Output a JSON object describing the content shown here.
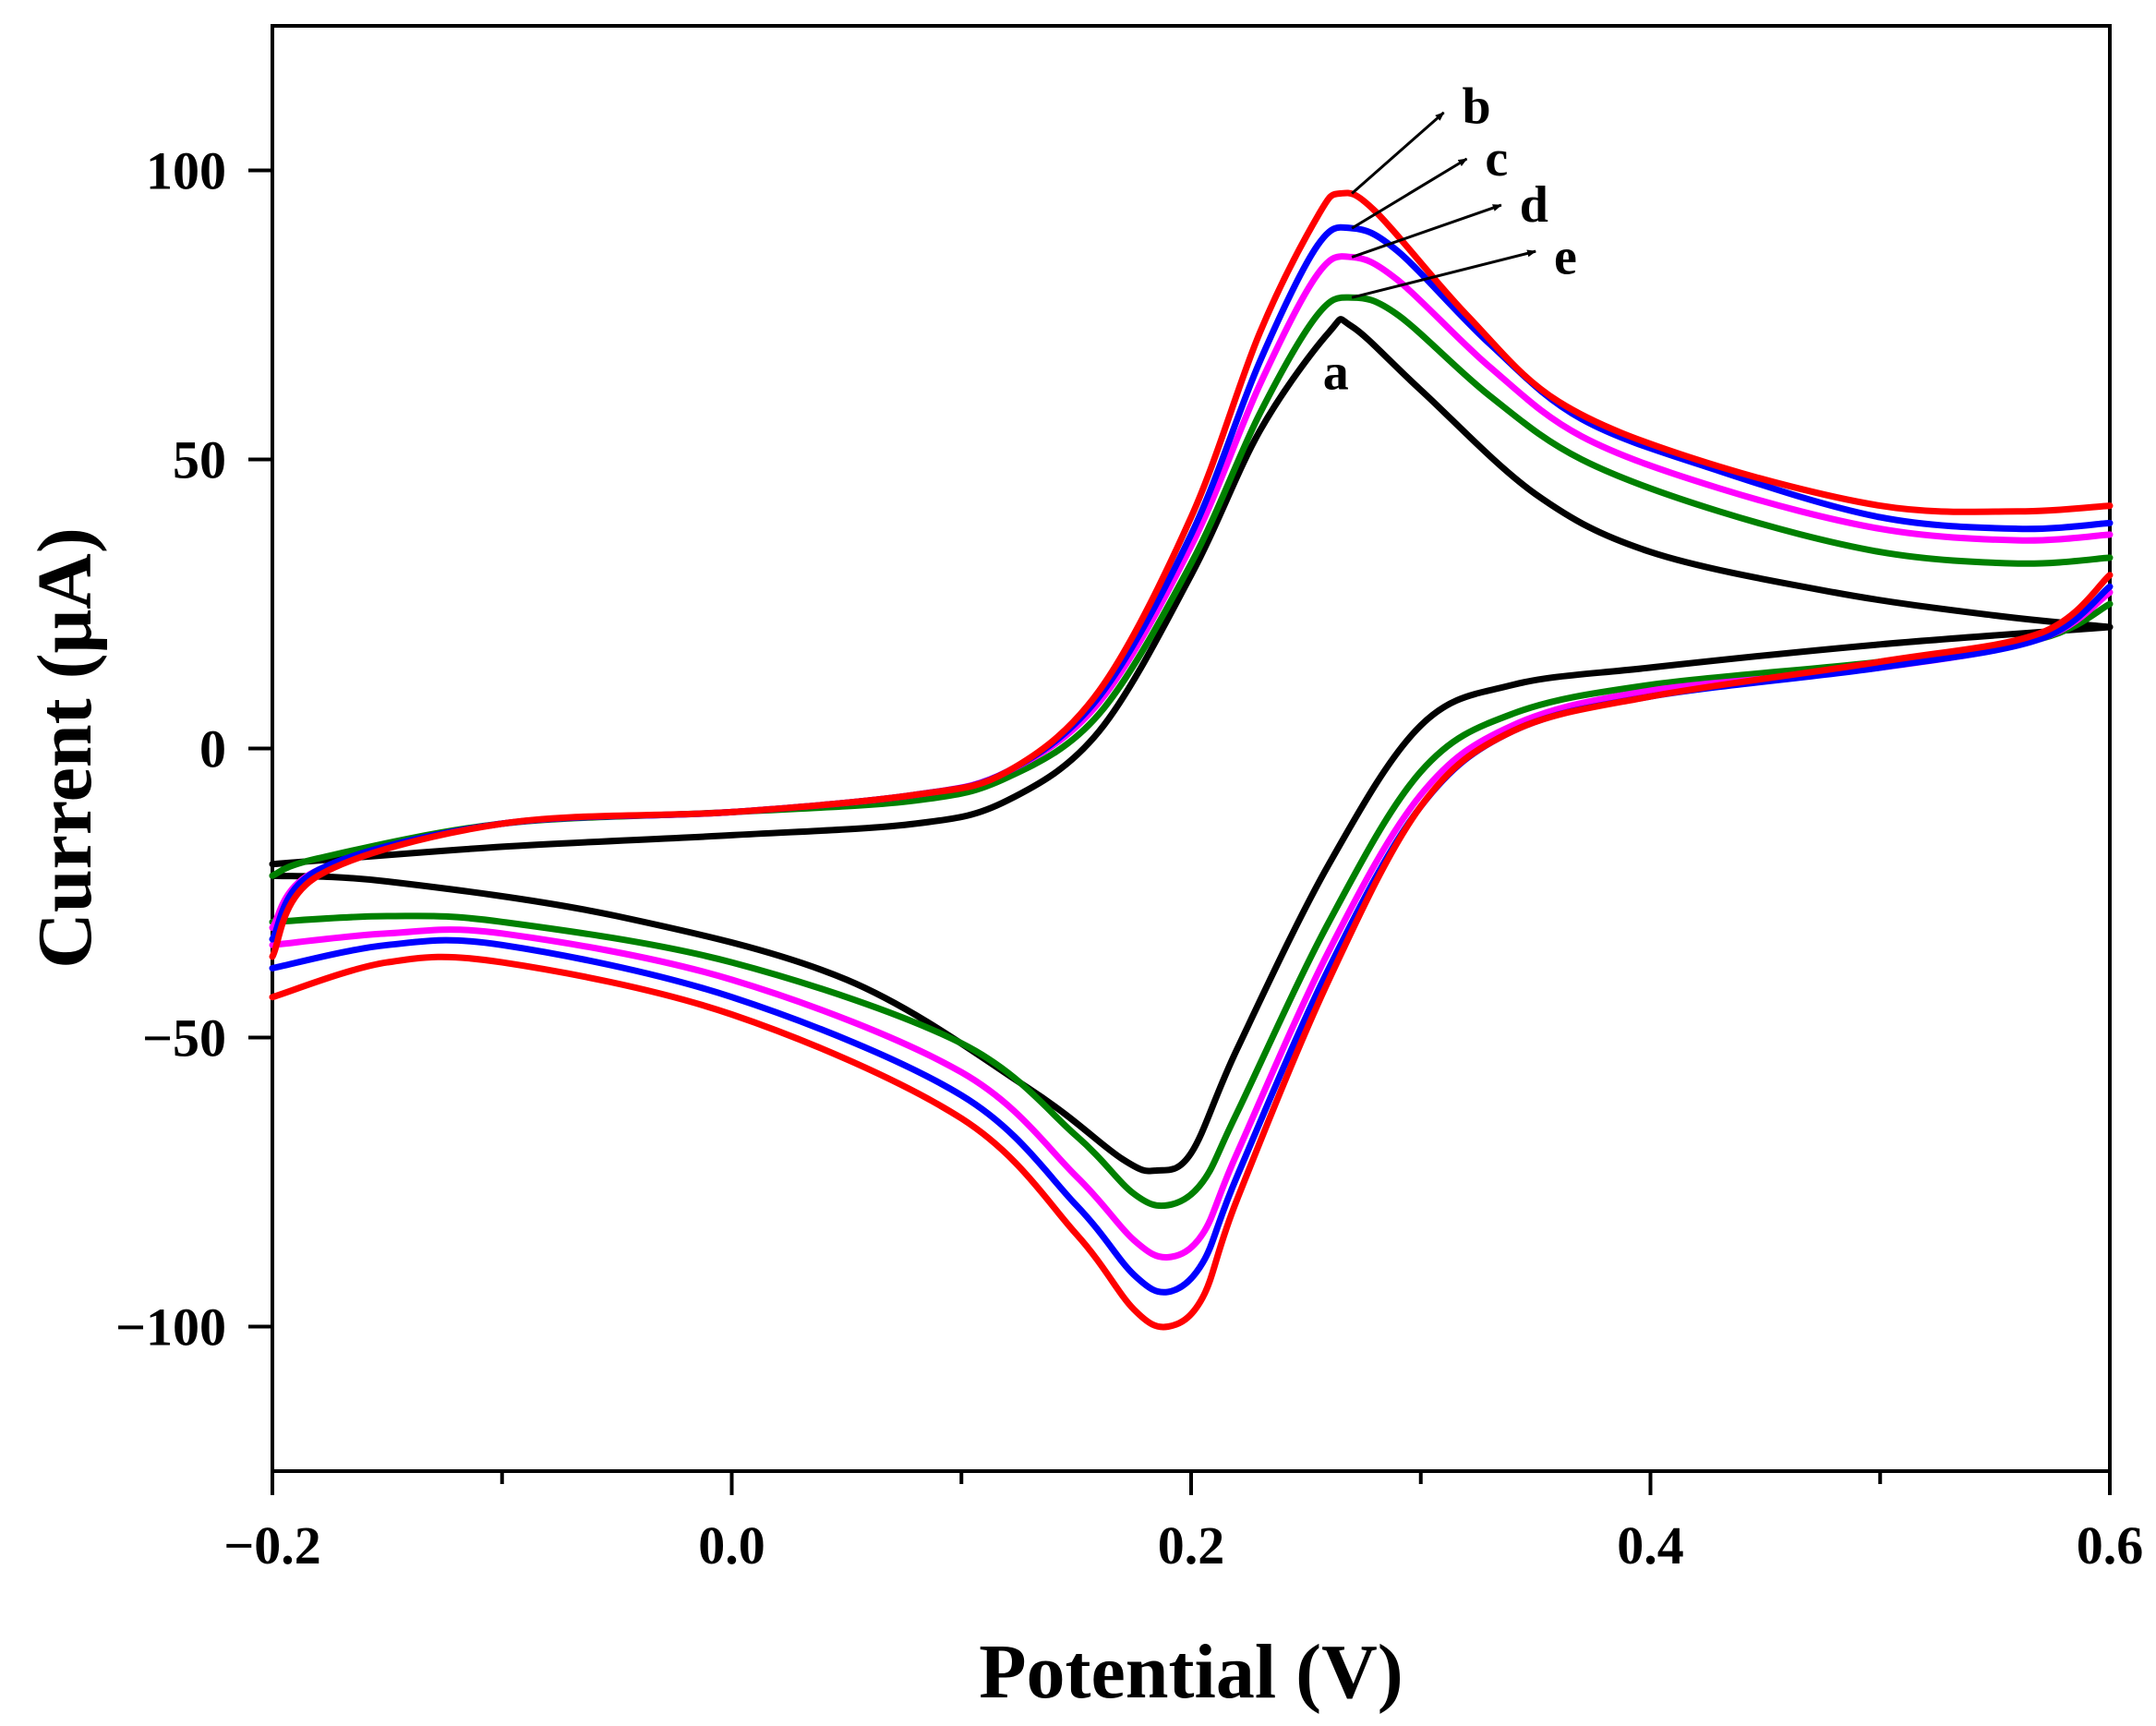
{
  "chart_data": {
    "type": "line",
    "title": "",
    "xlabel": "Potential (V)",
    "ylabel": "Current (μA)",
    "xlim": [
      -0.2,
      0.6
    ],
    "ylim": [
      -125,
      125
    ],
    "x_ticks": [
      -0.2,
      0.0,
      0.2,
      0.4,
      0.6
    ],
    "x_tick_labels": [
      "−0.2",
      "0.0",
      "0.2",
      "0.4",
      "0.6"
    ],
    "y_ticks": [
      -100,
      -50,
      0,
      50,
      100
    ],
    "y_tick_labels": [
      "−100",
      "−50",
      "0",
      "50",
      "100"
    ],
    "grid": false,
    "legend": "none",
    "series": [
      {
        "name": "a",
        "color": "#000000",
        "anodic": [
          [
            -0.2,
            -20
          ],
          [
            -0.1,
            -17
          ],
          [
            0.0,
            -15
          ],
          [
            0.08,
            -13
          ],
          [
            0.12,
            -9
          ],
          [
            0.16,
            3
          ],
          [
            0.2,
            30
          ],
          [
            0.23,
            55
          ],
          [
            0.26,
            72
          ],
          [
            0.27,
            73
          ],
          [
            0.3,
            62
          ],
          [
            0.35,
            44
          ],
          [
            0.4,
            34
          ],
          [
            0.48,
            27
          ],
          [
            0.55,
            23
          ],
          [
            0.6,
            21
          ]
        ],
        "cathodic": [
          [
            0.6,
            21
          ],
          [
            0.5,
            18
          ],
          [
            0.4,
            14
          ],
          [
            0.34,
            11
          ],
          [
            0.3,
            4
          ],
          [
            0.26,
            -20
          ],
          [
            0.22,
            -52
          ],
          [
            0.2,
            -70
          ],
          [
            0.185,
            -73
          ],
          [
            0.17,
            -71
          ],
          [
            0.13,
            -59
          ],
          [
            0.05,
            -40
          ],
          [
            -0.05,
            -29
          ],
          [
            -0.15,
            -23
          ],
          [
            -0.2,
            -22
          ]
        ]
      },
      {
        "name": "b",
        "color": "#ff0000",
        "anodic": [
          [
            -0.2,
            -36
          ],
          [
            -0.18,
            -22
          ],
          [
            -0.1,
            -13
          ],
          [
            0.0,
            -11
          ],
          [
            0.08,
            -8
          ],
          [
            0.12,
            -4
          ],
          [
            0.16,
            10
          ],
          [
            0.2,
            40
          ],
          [
            0.23,
            72
          ],
          [
            0.255,
            92
          ],
          [
            0.265,
            96
          ],
          [
            0.28,
            93
          ],
          [
            0.32,
            75
          ],
          [
            0.36,
            60
          ],
          [
            0.42,
            50
          ],
          [
            0.5,
            42
          ],
          [
            0.56,
            41
          ],
          [
            0.6,
            42
          ]
        ],
        "cathodic": [
          [
            0.6,
            30
          ],
          [
            0.57,
            20
          ],
          [
            0.5,
            15
          ],
          [
            0.4,
            9
          ],
          [
            0.34,
            3
          ],
          [
            0.3,
            -10
          ],
          [
            0.26,
            -40
          ],
          [
            0.22,
            -78
          ],
          [
            0.205,
            -95
          ],
          [
            0.19,
            -100
          ],
          [
            0.175,
            -97
          ],
          [
            0.15,
            -84
          ],
          [
            0.1,
            -64
          ],
          [
            0.0,
            -46
          ],
          [
            -0.1,
            -37
          ],
          [
            -0.15,
            -37
          ],
          [
            -0.2,
            -43
          ]
        ]
      },
      {
        "name": "c",
        "color": "#0000ff",
        "anodic": [
          [
            -0.2,
            -33
          ],
          [
            -0.18,
            -21
          ],
          [
            -0.1,
            -13
          ],
          [
            0.0,
            -11
          ],
          [
            0.08,
            -8
          ],
          [
            0.12,
            -4
          ],
          [
            0.16,
            9
          ],
          [
            0.2,
            37
          ],
          [
            0.23,
            67
          ],
          [
            0.255,
            87
          ],
          [
            0.27,
            90
          ],
          [
            0.29,
            86
          ],
          [
            0.33,
            70
          ],
          [
            0.37,
            57
          ],
          [
            0.43,
            48
          ],
          [
            0.5,
            40
          ],
          [
            0.56,
            38
          ],
          [
            0.6,
            39
          ]
        ],
        "cathodic": [
          [
            0.6,
            28
          ],
          [
            0.57,
            19
          ],
          [
            0.5,
            14
          ],
          [
            0.4,
            9
          ],
          [
            0.34,
            3
          ],
          [
            0.3,
            -10
          ],
          [
            0.26,
            -38
          ],
          [
            0.22,
            -74
          ],
          [
            0.205,
            -89
          ],
          [
            0.19,
            -94
          ],
          [
            0.175,
            -91
          ],
          [
            0.15,
            -79
          ],
          [
            0.1,
            -60
          ],
          [
            0.0,
            -43
          ],
          [
            -0.1,
            -34
          ],
          [
            -0.15,
            -34
          ],
          [
            -0.2,
            -38
          ]
        ]
      },
      {
        "name": "d",
        "color": "#ff00ff",
        "anodic": [
          [
            -0.2,
            -31
          ],
          [
            -0.18,
            -21
          ],
          [
            -0.1,
            -13
          ],
          [
            0.0,
            -11
          ],
          [
            0.08,
            -8
          ],
          [
            0.12,
            -4
          ],
          [
            0.16,
            8
          ],
          [
            0.2,
            35
          ],
          [
            0.23,
            63
          ],
          [
            0.255,
            82
          ],
          [
            0.27,
            85
          ],
          [
            0.29,
            81
          ],
          [
            0.33,
            66
          ],
          [
            0.37,
            54
          ],
          [
            0.43,
            45
          ],
          [
            0.5,
            38
          ],
          [
            0.56,
            36
          ],
          [
            0.6,
            37
          ]
        ],
        "cathodic": [
          [
            0.6,
            27
          ],
          [
            0.57,
            19
          ],
          [
            0.5,
            14
          ],
          [
            0.4,
            10
          ],
          [
            0.34,
            4
          ],
          [
            0.3,
            -8
          ],
          [
            0.26,
            -35
          ],
          [
            0.22,
            -70
          ],
          [
            0.205,
            -84
          ],
          [
            0.19,
            -88
          ],
          [
            0.175,
            -85
          ],
          [
            0.15,
            -74
          ],
          [
            0.1,
            -56
          ],
          [
            0.0,
            -40
          ],
          [
            -0.1,
            -32
          ],
          [
            -0.15,
            -32
          ],
          [
            -0.2,
            -34
          ]
        ]
      },
      {
        "name": "e",
        "color": "#008000",
        "anodic": [
          [
            -0.2,
            -22
          ],
          [
            -0.18,
            -19
          ],
          [
            -0.1,
            -13
          ],
          [
            0.0,
            -11
          ],
          [
            0.08,
            -9
          ],
          [
            0.12,
            -5
          ],
          [
            0.16,
            6
          ],
          [
            0.2,
            32
          ],
          [
            0.23,
            58
          ],
          [
            0.255,
            75
          ],
          [
            0.27,
            78
          ],
          [
            0.29,
            75
          ],
          [
            0.33,
            61
          ],
          [
            0.37,
            50
          ],
          [
            0.43,
            41
          ],
          [
            0.5,
            34
          ],
          [
            0.56,
            32
          ],
          [
            0.6,
            33
          ]
        ],
        "cathodic": [
          [
            0.6,
            25
          ],
          [
            0.57,
            19
          ],
          [
            0.5,
            15
          ],
          [
            0.4,
            11
          ],
          [
            0.34,
            6
          ],
          [
            0.3,
            -4
          ],
          [
            0.26,
            -30
          ],
          [
            0.22,
            -63
          ],
          [
            0.205,
            -75
          ],
          [
            0.19,
            -79
          ],
          [
            0.175,
            -77
          ],
          [
            0.15,
            -67
          ],
          [
            0.1,
            -51
          ],
          [
            0.0,
            -37
          ],
          [
            -0.1,
            -30
          ],
          [
            -0.15,
            -29
          ],
          [
            -0.2,
            -30
          ]
        ]
      }
    ],
    "annotations": [
      {
        "text": "b",
        "color": "#000000",
        "from": [
          0.27,
          96
        ],
        "to": [
          0.31,
          110
        ],
        "label_at": [
          0.318,
          111
        ]
      },
      {
        "text": "c",
        "color": "#000000",
        "from": [
          0.27,
          90
        ],
        "to": [
          0.32,
          102
        ],
        "label_at": [
          0.328,
          102
        ]
      },
      {
        "text": "d",
        "color": "#000000",
        "from": [
          0.27,
          85
        ],
        "to": [
          0.335,
          94
        ],
        "label_at": [
          0.343,
          94
        ]
      },
      {
        "text": "e",
        "color": "#000000",
        "from": [
          0.27,
          78
        ],
        "to": [
          0.35,
          86
        ],
        "label_at": [
          0.358,
          85
        ]
      },
      {
        "text": "a",
        "color": "#000000",
        "from": null,
        "to": null,
        "label_at": [
          0.263,
          65
        ]
      }
    ]
  }
}
